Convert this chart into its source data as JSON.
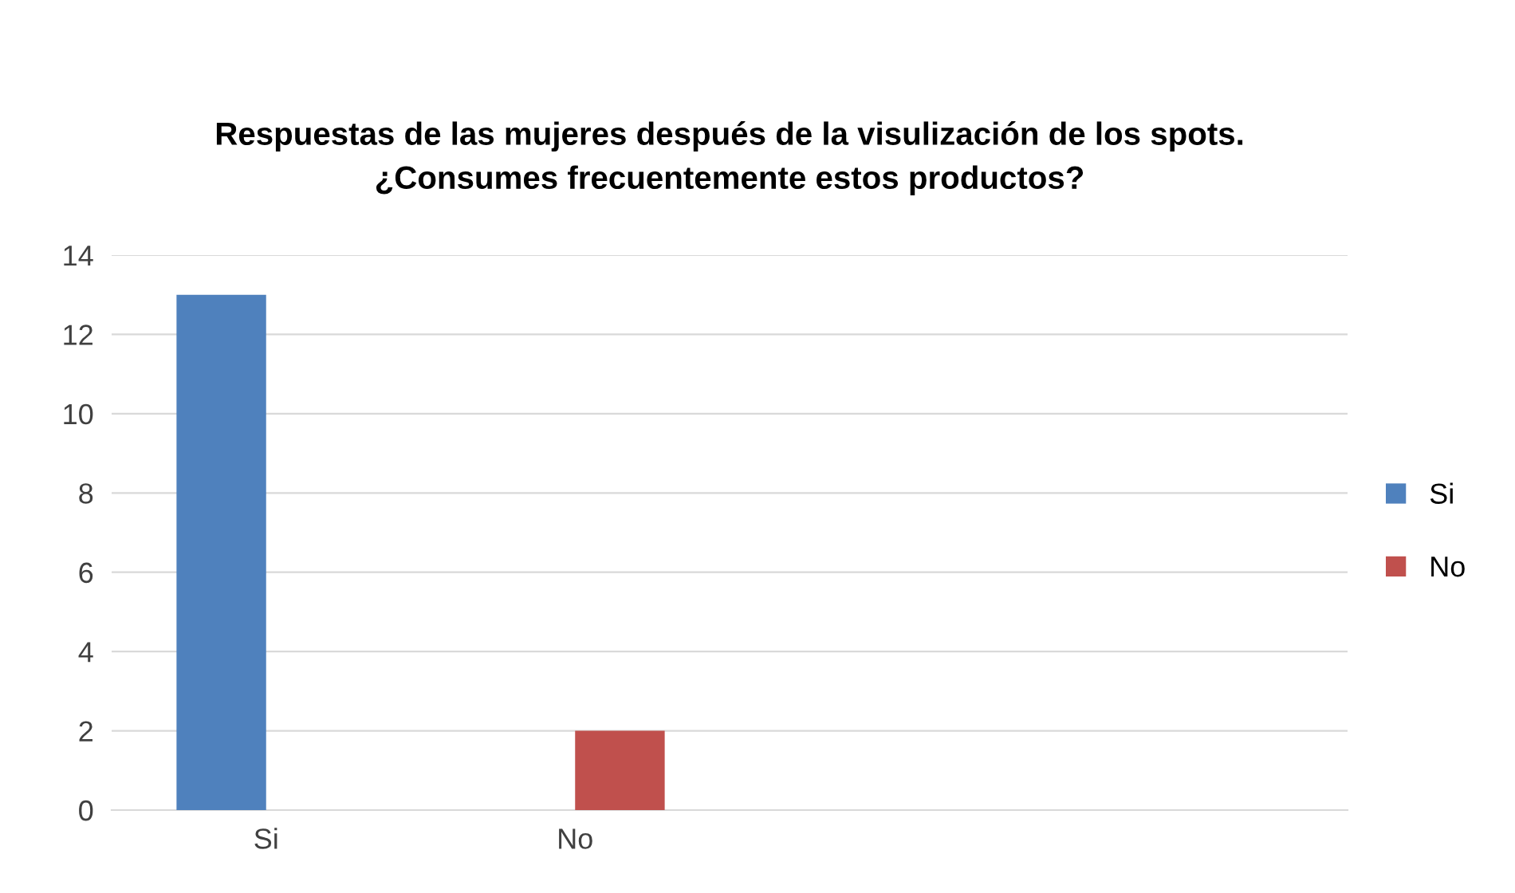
{
  "chart_data": {
    "type": "bar",
    "title": "Respuestas de las mujeres después de la visulización de los spots.\n¿Consumes frecuentemente estos productos?",
    "categories": [
      "Si",
      "No",
      null,
      null
    ],
    "series": [
      {
        "name": "Si",
        "color": "#4f81bd",
        "values": [
          13,
          null,
          null,
          null
        ]
      },
      {
        "name": "No",
        "color": "#c0504d",
        "values": [
          null,
          2,
          null,
          null
        ]
      }
    ],
    "ylim": [
      0,
      14
    ],
    "yticks": [
      0,
      2,
      4,
      6,
      8,
      10,
      12,
      14
    ],
    "grid": "y",
    "legend": "right"
  }
}
